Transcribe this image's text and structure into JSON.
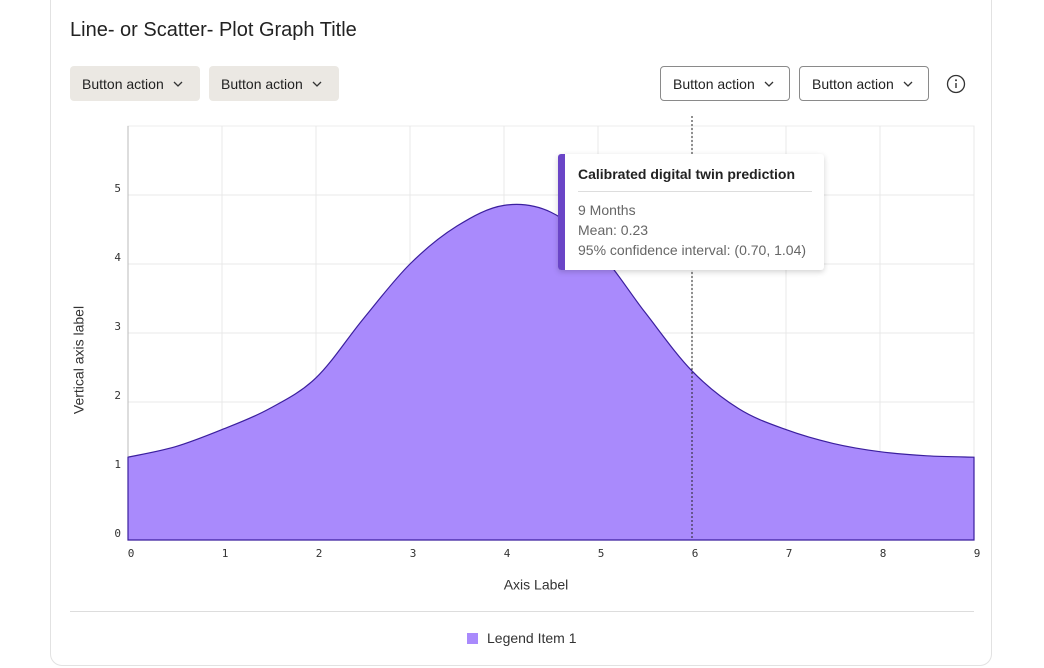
{
  "header": {
    "title": "Line- or Scatter- Plot Graph Title"
  },
  "toolbar": {
    "filters": [
      "Button action",
      "Button action"
    ],
    "actions": [
      "Button action",
      "Button action"
    ]
  },
  "chart_data": {
    "type": "area",
    "x": [
      0,
      0.5,
      1,
      1.5,
      2,
      2.5,
      3,
      3.5,
      4,
      4.5,
      5,
      5.5,
      6,
      6.5,
      7,
      7.5,
      8,
      8.5,
      9
    ],
    "series": [
      {
        "name": "Legend Item 1",
        "color": "#a98afc",
        "line_color": "#3b1f9e",
        "values": [
          1.2,
          1.35,
          1.6,
          1.9,
          2.35,
          3.2,
          4.0,
          4.55,
          4.85,
          4.75,
          4.2,
          3.3,
          2.45,
          1.9,
          1.6,
          1.4,
          1.28,
          1.22,
          1.2
        ]
      }
    ],
    "xlabel": "Axis Label",
    "ylabel": "Vertical axis label",
    "xlim": [
      0,
      9
    ],
    "xticks": [
      0,
      1,
      2,
      3,
      4,
      5,
      6,
      7,
      8,
      9
    ],
    "ylim": [
      0,
      6
    ],
    "yticks": [
      0,
      1,
      2,
      3,
      4,
      5
    ],
    "grid": true,
    "cursor_x": 6,
    "tooltip": {
      "title": "Calibrated digital twin prediction",
      "lines": [
        "9 Months",
        "Mean: 0.23",
        "95% confidence interval: (0.70, 1.04)"
      ]
    }
  }
}
